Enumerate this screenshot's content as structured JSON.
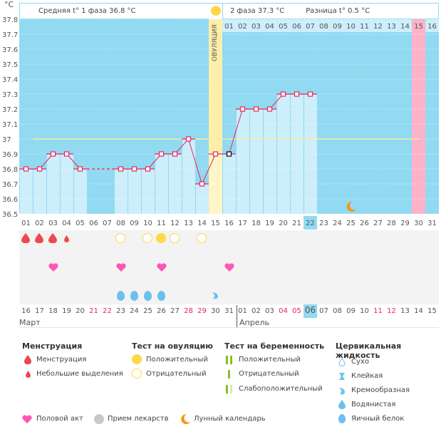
{
  "header": {
    "unit": "°C",
    "phase1": "Средняя t° 1 фаза 36.8 °C",
    "phase2": "2 фаза 37.3 °C",
    "diff": "Разница t° 0.5 °C",
    "ovulation_label": "ОВУЛЯЦИЯ"
  },
  "chart_data": {
    "type": "line",
    "title": "",
    "ylabel": "°C",
    "ylim": [
      36.5,
      37.8
    ],
    "yticks": [
      "37.8",
      "37.7",
      "37.6",
      "37.5",
      "37.4",
      "37.3",
      "37.2",
      "37.1",
      "37",
      "36.9",
      "36.8",
      "36.7",
      "36.6",
      "36.5"
    ],
    "coverline": 37.0,
    "cycle_days": [
      "01",
      "02",
      "03",
      "04",
      "05",
      "06",
      "07",
      "08",
      "09",
      "10",
      "11",
      "12",
      "13",
      "14",
      "15",
      "16",
      "17",
      "18",
      "19",
      "20",
      "21",
      "22",
      "23",
      "24",
      "25",
      "26",
      "27",
      "28",
      "29",
      "30",
      "31"
    ],
    "top_days": [
      "01",
      "02",
      "03",
      "04",
      "05",
      "06",
      "07",
      "08",
      "09",
      "10",
      "11",
      "12",
      "13",
      "14",
      "15",
      "16"
    ],
    "top_days_start_index": 15,
    "temperatures": [
      36.8,
      36.8,
      36.9,
      36.9,
      36.8,
      null,
      null,
      36.8,
      36.8,
      36.8,
      36.9,
      36.9,
      37.0,
      36.7,
      36.9,
      36.9,
      37.2,
      37.2,
      37.2,
      37.3,
      37.3,
      37.3,
      null,
      null,
      null,
      null,
      null,
      null,
      null,
      null,
      null
    ],
    "ovulation_day": 15,
    "today_cycle_day": 22,
    "expected_period_day": 30,
    "moon_day": 25,
    "calendar_days": [
      "16",
      "17",
      "18",
      "19",
      "20",
      "21",
      "22",
      "23",
      "24",
      "25",
      "26",
      "27",
      "28",
      "29",
      "30",
      "31",
      "01",
      "02",
      "03",
      "04",
      "05",
      "06",
      "07",
      "08",
      "09",
      "10",
      "11",
      "12",
      "13",
      "14",
      "15"
    ],
    "weekend_indices": [
      5,
      6,
      12,
      13,
      19,
      20,
      26,
      27
    ],
    "today_calendar_index": 21,
    "months": [
      {
        "name": "Март",
        "start_index": 0
      },
      {
        "name": "Апрель",
        "start_index": 16
      }
    ],
    "menstruation": {
      "1": "full",
      "2": "full",
      "3": "full",
      "4": "light"
    },
    "ovulation_test": {
      "8": "negative",
      "10": "negative",
      "11": "positive",
      "12": "negative",
      "14": "negative"
    },
    "intercourse": [
      3,
      8,
      11,
      16
    ],
    "cervical_fluid": {
      "8": "eggwhite",
      "9": "eggwhite",
      "10": "eggwhite",
      "11": "eggwhite",
      "15": "creamy"
    }
  },
  "legend": {
    "menstruation": {
      "title": "Менструация",
      "items": [
        "Менструация",
        "Небольшие выделения"
      ]
    },
    "ovulation_test": {
      "title": "Тест на овуляцию",
      "items": [
        "Положительный",
        "Отрицательный"
      ]
    },
    "pregnancy_test": {
      "title": "Тест на беременность",
      "items": [
        "Положительный",
        "Отрицательный",
        "Слабоположительный"
      ]
    },
    "cervical": {
      "title": "Цервикальная жидкость",
      "items": [
        "Сухо",
        "Клейкая",
        "Кремообразная",
        "Водянистая",
        "Яичный белок"
      ]
    },
    "bottom": [
      "Половой акт",
      "Прием лекарств",
      "Лунный календарь"
    ]
  },
  "colors": {
    "bg_chart": "#92d9f2",
    "bar": "#cdeefb",
    "line": "#e8245a",
    "ovulation": "#fdeeaa",
    "period": "#fcb2c8",
    "coverline": "#f6eea0",
    "today": "#92d9f2",
    "weekend": "#e8245a"
  }
}
